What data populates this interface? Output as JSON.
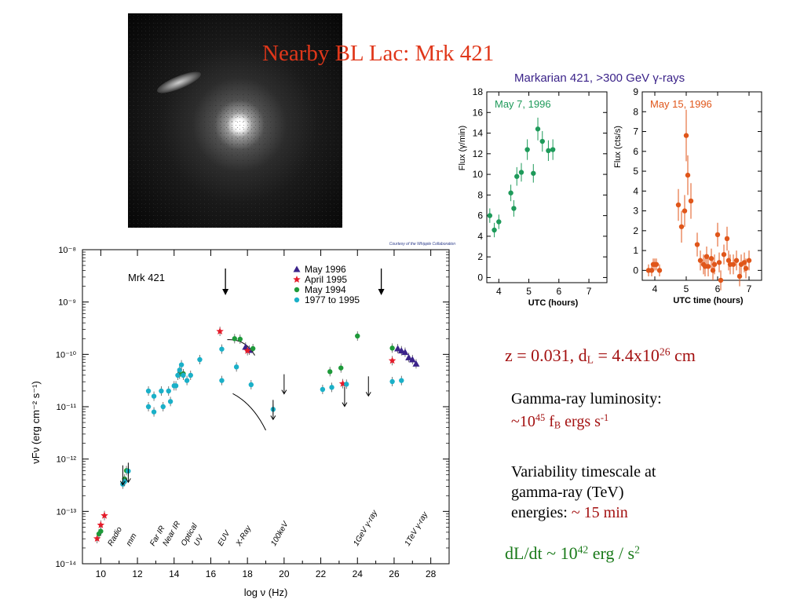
{
  "slide": {
    "title": "Nearby BL Lac: Mrk 421",
    "redshift": {
      "z_text": "z = 0.031, d",
      "z_sub": "L",
      "z_mid": " = 4.4x10",
      "z_sup": "26",
      "z_end": " cm"
    },
    "luminosity": {
      "label": "Gamma-ray luminosity:",
      "pre": "~10",
      "sup": "45",
      "mid": " f",
      "sub": "B",
      "post": " ergs s",
      "sup2": "-1"
    },
    "variability": {
      "line1": "Variability timescale at",
      "line2": "gamma-ray (TeV)",
      "line3_pre": "energies: ",
      "line3_value": "~ 15 min"
    },
    "dldt": {
      "pre": "dL/dt ~ 10",
      "sup": "42",
      "mid": " erg / s",
      "sup2": "2"
    }
  },
  "colors": {
    "title": "#e0371a",
    "accent_red": "#a31010",
    "accent_green": "#1a7a1a",
    "lc_title": "#3b2389",
    "may7": "#1e9a5a",
    "may15": "#e0561a",
    "may1996": "#3b2389",
    "apr1995": "#e51b2a",
    "may1994": "#1e9a3a",
    "hist": "#1ab0c8"
  },
  "galaxy_image": {
    "icon": "galaxy-photo"
  },
  "chart_data": [
    {
      "type": "scatter",
      "title": "Markarian 421, >300 GeV γ-rays",
      "panel": "May 7, 1996",
      "xlabel": "UTC (hours)",
      "ylabel": "Flux (γ/min)",
      "xlim": [
        3.6,
        7.6
      ],
      "ylim": [
        -0.5,
        18
      ],
      "xticks": [
        4,
        5,
        6,
        7
      ],
      "yticks": [
        0,
        2,
        4,
        6,
        8,
        10,
        12,
        14,
        16,
        18
      ],
      "series": [
        {
          "x": [
            3.7,
            3.85,
            4.0,
            4.4,
            4.5,
            4.6,
            4.75,
            4.95,
            5.15,
            5.3,
            5.45,
            5.65,
            5.8
          ],
          "y": [
            6.0,
            4.6,
            5.4,
            8.2,
            6.7,
            9.8,
            10.2,
            12.4,
            10.1,
            14.4,
            13.2,
            12.3,
            12.4
          ],
          "err": [
            0.7,
            0.7,
            0.7,
            0.8,
            0.8,
            0.9,
            0.9,
            1.0,
            0.9,
            1.1,
            1.0,
            1.0,
            1.0
          ]
        }
      ]
    },
    {
      "type": "scatter",
      "panel": "May 15, 1996",
      "xlabel": "UTC time (hours)",
      "ylabel": "Flux (cts/s)",
      "xlim": [
        3.6,
        7.4
      ],
      "ylim": [
        -0.5,
        9
      ],
      "xticks": [
        4,
        5,
        6,
        7
      ],
      "yticks": [
        0,
        1,
        2,
        3,
        4,
        5,
        6,
        7,
        8,
        9
      ],
      "series": [
        {
          "x": [
            3.8,
            3.9,
            3.95,
            4.0,
            4.05,
            4.15,
            4.75,
            4.85,
            4.95,
            5.0,
            5.05,
            5.15,
            5.35,
            5.45,
            5.55,
            5.6,
            5.65,
            5.7,
            5.8,
            5.85,
            5.9,
            6.0,
            6.05,
            6.1,
            6.2,
            6.3,
            6.35,
            6.4,
            6.5,
            6.6,
            6.7,
            6.75,
            6.85,
            6.9,
            7.0
          ],
          "y": [
            0.0,
            0.0,
            0.3,
            0.3,
            0.3,
            0.0,
            3.3,
            2.2,
            3.0,
            6.8,
            4.8,
            3.5,
            1.3,
            0.5,
            0.3,
            0.2,
            0.7,
            0.2,
            0.6,
            0.0,
            0.3,
            1.8,
            0.4,
            -0.5,
            0.8,
            1.6,
            0.5,
            0.3,
            0.3,
            0.5,
            -0.3,
            0.3,
            0.4,
            0.1,
            0.5
          ],
          "err": [
            0.3,
            0.3,
            0.3,
            0.3,
            0.3,
            0.3,
            0.8,
            0.8,
            0.8,
            1.3,
            1.0,
            0.9,
            0.6,
            0.5,
            0.5,
            0.5,
            0.5,
            0.5,
            0.5,
            0.5,
            0.5,
            0.6,
            0.5,
            0.5,
            0.5,
            0.6,
            0.5,
            0.5,
            0.5,
            0.5,
            0.5,
            0.5,
            0.5,
            0.5,
            0.5
          ]
        }
      ]
    },
    {
      "type": "scatter",
      "title": "Mrk 421",
      "credit": "Courtesy of the Whipple Collaboration",
      "xlabel": "log ν (Hz)",
      "ylabel": "νFν (erg cm⁻² s⁻¹)",
      "xlim": [
        9,
        29
      ],
      "ylim_log10": [
        -14,
        -8
      ],
      "xticks": [
        10,
        12,
        14,
        16,
        18,
        20,
        22,
        24,
        26,
        28
      ],
      "yticks_log10": [
        -14,
        -13,
        -12,
        -11,
        -10,
        -9,
        -8
      ],
      "ytick_labels": [
        "10⁻¹⁴",
        "10⁻¹³",
        "10⁻¹²",
        "10⁻¹¹",
        "10⁻¹⁰",
        "10⁻⁹",
        "10⁻⁸"
      ],
      "band_labels": [
        {
          "label": "Radio",
          "x": 10.6
        },
        {
          "label": "mm",
          "x": 11.6
        },
        {
          "label": "Far IR",
          "x": 12.9
        },
        {
          "label": "Near IR",
          "x": 13.6
        },
        {
          "label": "Optical",
          "x": 14.6
        },
        {
          "label": "UV",
          "x": 15.3
        },
        {
          "label": "EUV",
          "x": 16.6
        },
        {
          "label": "X-Ray",
          "x": 17.6
        },
        {
          "label": "100keV",
          "x": 19.5
        },
        {
          "label": "1GeV γ-ray",
          "x": 24.0
        },
        {
          "label": "1TeV γ-ray",
          "x": 26.8
        }
      ],
      "legend": [
        "May 1996",
        "April 1995",
        "May 1994",
        "1977 to 1995"
      ],
      "legend_position": "top-right",
      "arrows_at_x": [
        16.8,
        25.3
      ],
      "series": [
        {
          "name": "May 1996",
          "marker": "triangle",
          "x": [
            17.9,
            18.1,
            26.2,
            26.4,
            26.6,
            26.8,
            27.0,
            27.2
          ],
          "logy": [
            -9.86,
            -9.92,
            -9.89,
            -9.93,
            -9.96,
            -10.06,
            -10.1,
            -10.18
          ]
        },
        {
          "name": "April 1995",
          "marker": "star",
          "x": [
            9.8,
            10.0,
            10.2,
            16.5,
            18.0,
            23.2,
            25.9
          ],
          "logy": [
            -13.52,
            -13.26,
            -13.08,
            -9.56,
            -9.93,
            -10.56,
            -10.12
          ]
        },
        {
          "name": "May 1994",
          "marker": "circle",
          "x": [
            9.9,
            10.0,
            11.3,
            11.4,
            14.3,
            14.5,
            17.3,
            17.6,
            18.3,
            22.5,
            23.1,
            24.0,
            25.9
          ],
          "logy": [
            -13.43,
            -13.38,
            -12.38,
            -12.22,
            -10.38,
            -10.37,
            -9.7,
            -9.71,
            -9.89,
            -10.33,
            -10.26,
            -9.65,
            -9.88
          ]
        },
        {
          "name": "1977 to 1995",
          "marker": "circle",
          "x": [
            11.2,
            11.3,
            11.5,
            12.6,
            12.6,
            12.9,
            12.9,
            13.3,
            13.4,
            13.7,
            13.8,
            14.0,
            14.1,
            14.2,
            14.3,
            14.4,
            14.5,
            14.7,
            14.9,
            15.4,
            16.6,
            16.6,
            17.4,
            18.2,
            19.4,
            22.1,
            22.6,
            23.4,
            25.9,
            26.4
          ],
          "logy": [
            -12.48,
            -12.43,
            -12.23,
            -10.7,
            -11.0,
            -10.8,
            -11.1,
            -10.7,
            -11.0,
            -10.7,
            -10.9,
            -10.6,
            -10.6,
            -10.4,
            -10.3,
            -10.2,
            -10.4,
            -10.5,
            -10.4,
            -10.1,
            -10.5,
            -9.9,
            -10.24,
            -10.58,
            -11.05,
            -10.67,
            -10.63,
            -10.57,
            -10.52,
            -10.5
          ]
        }
      ],
      "upper_limits": [
        {
          "x": 11.2,
          "logy": -12.3
        },
        {
          "x": 11.5,
          "logy": -12.25
        },
        {
          "x": 19.4,
          "logy": -11.05
        },
        {
          "x": 20.0,
          "logy": -10.56
        },
        {
          "x": 23.3,
          "logy": -10.8
        },
        {
          "x": 24.6,
          "logy": -10.6
        }
      ]
    }
  ]
}
